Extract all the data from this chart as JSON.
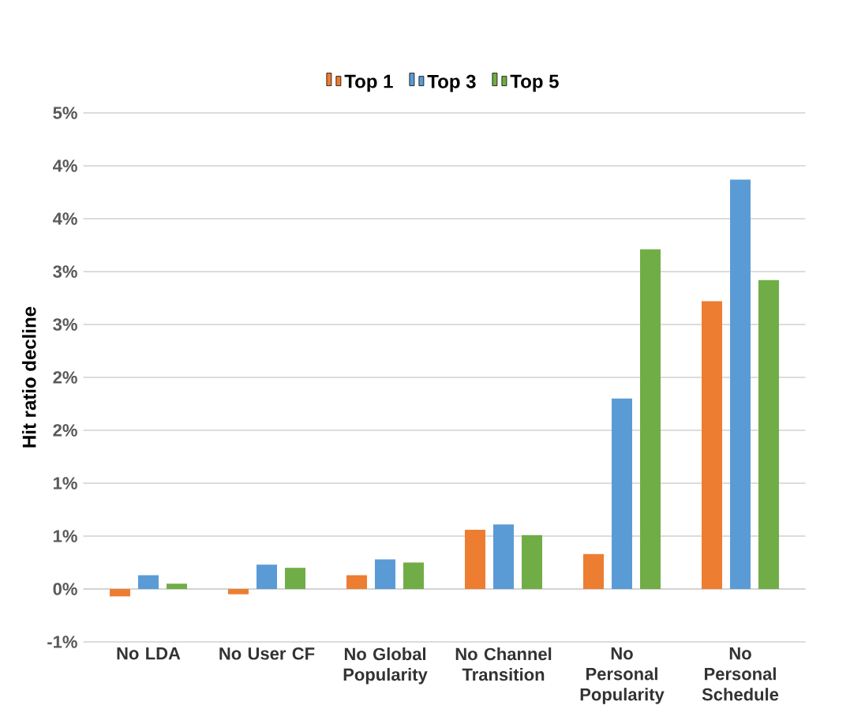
{
  "chart_data": {
    "type": "bar",
    "ylabel": "Hit ratio decline",
    "categories": [
      "No LDA",
      "No User CF",
      "No Global Popularity",
      "No Channel Transition",
      "No Personal Popularity",
      "No Personal Schedule"
    ],
    "series": [
      {
        "name": "Top 1",
        "color": "#ed7d31",
        "values": [
          -0.07,
          -0.05,
          0.13,
          0.56,
          0.33,
          2.72
        ]
      },
      {
        "name": "Top 3",
        "color": "#5b9bd5",
        "values": [
          0.13,
          0.23,
          0.28,
          0.61,
          1.8,
          3.87
        ]
      },
      {
        "name": "Top 5",
        "color": "#70ad47",
        "values": [
          0.05,
          0.2,
          0.25,
          0.51,
          3.21,
          2.92
        ]
      }
    ],
    "ylim": [
      -0.5,
      4.5
    ],
    "yticks": [
      {
        "value": -0.5,
        "label": "-1%"
      },
      {
        "value": 0,
        "label": "0%"
      },
      {
        "value": 0.5,
        "label": "1%"
      },
      {
        "value": 1,
        "label": "1%"
      },
      {
        "value": 1.5,
        "label": "2%"
      },
      {
        "value": 2,
        "label": "2%"
      },
      {
        "value": 2.5,
        "label": "3%"
      },
      {
        "value": 3,
        "label": "3%"
      },
      {
        "value": 3.5,
        "label": "4%"
      },
      {
        "value": 4,
        "label": "4%"
      },
      {
        "value": 4.5,
        "label": "5%"
      }
    ],
    "grid": "y",
    "legend": "top"
  }
}
